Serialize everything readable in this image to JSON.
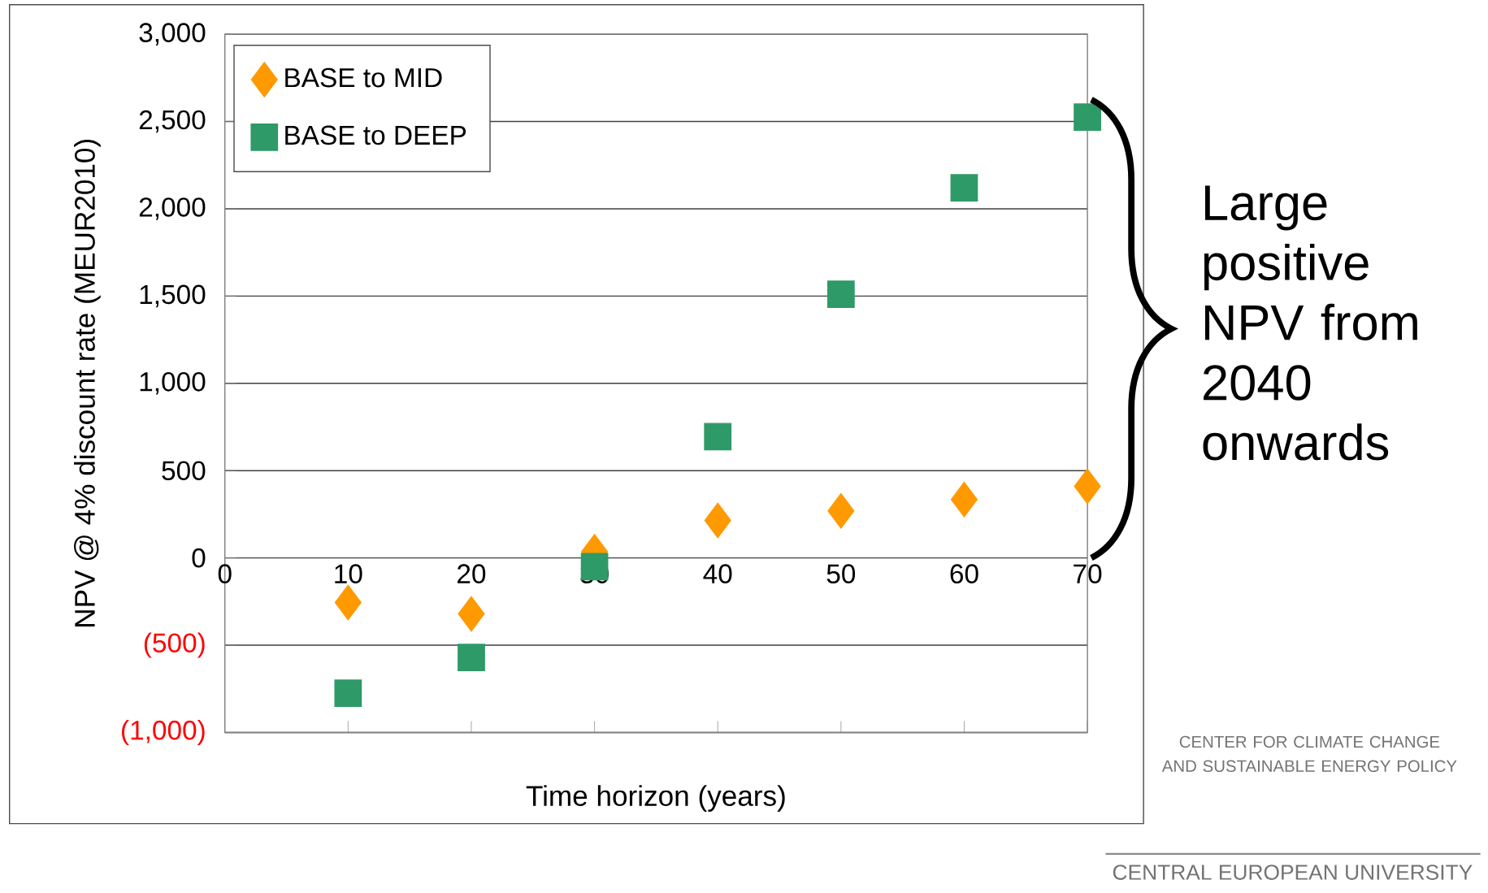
{
  "chart_data": {
    "type": "scatter",
    "xlabel": "Time horizon (years)",
    "ylabel": "NPV @ 4% discount rate (MEUR2010)",
    "xlim": [
      0,
      70
    ],
    "xticks": [
      0,
      10,
      20,
      30,
      40,
      50,
      60,
      70
    ],
    "ylim": [
      -1000,
      3000
    ],
    "yticks": [
      {
        "value": -1000,
        "label": "(1,000)"
      },
      {
        "value": -500,
        "label": "(500)"
      },
      {
        "value": 0,
        "label": "0"
      },
      {
        "value": 500,
        "label": "500"
      },
      {
        "value": 1000,
        "label": "1,000"
      },
      {
        "value": 1500,
        "label": "1,500"
      },
      {
        "value": 2000,
        "label": "2,000"
      },
      {
        "value": 2500,
        "label": "2,500"
      },
      {
        "value": 3000,
        "label": "3,000"
      }
    ],
    "grid": "y",
    "legend": "top left",
    "x": [
      10,
      20,
      30,
      40,
      50,
      60,
      70
    ],
    "series": [
      {
        "name": "BASE to MID",
        "color": "#ff9900",
        "marker": "diamond",
        "values": [
          -255,
          -320,
          35,
          215,
          270,
          335,
          410
        ]
      },
      {
        "name": "BASE to DEEP",
        "color": "#2e9a67",
        "marker": "square",
        "values": [
          -775,
          -570,
          -50,
          695,
          1510,
          2120,
          2525
        ]
      }
    ],
    "annotations": [
      "Large positive NPV from 2040 onwards",
      "CENTER FOR CLIMATE CHANGE AND SUSTAINABLE ENERGY POLICY",
      "CENTRAL EUROPEAN UNIVERSITY"
    ]
  }
}
